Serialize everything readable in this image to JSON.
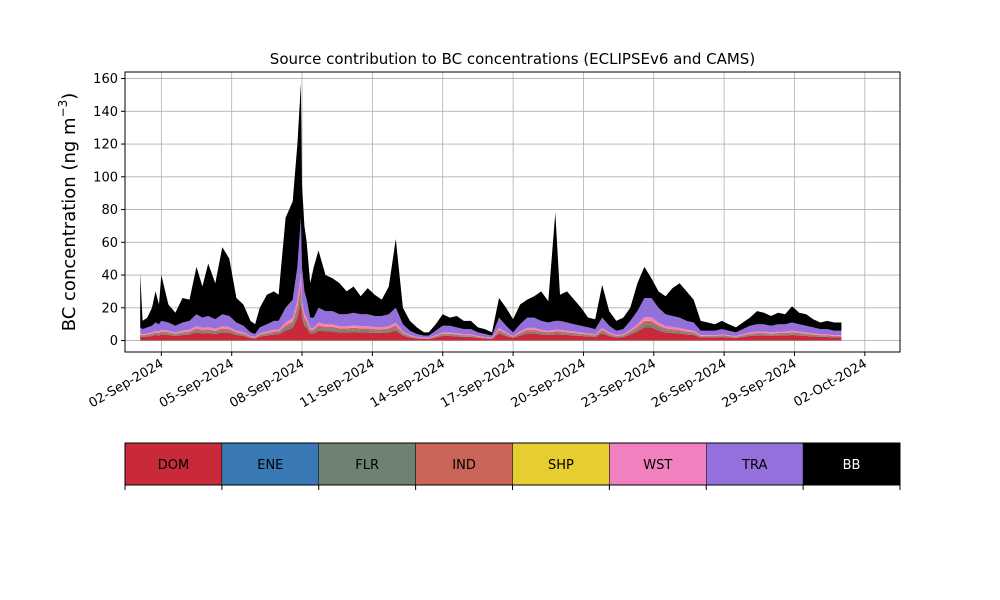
{
  "chart_data": {
    "type": "area",
    "title": "Source contribution to BC concentrations (ECLIPSEv6 and CAMS)",
    "ylabel": "BC concentration (ng m⁻³)",
    "ylabel_main": "BC concentration (ng m",
    "ylabel_sup": "−3",
    "ylabel_close": ")",
    "xlabel": "",
    "ylim": [
      -7,
      164
    ],
    "xlim_days": [
      -1.55,
      31.5
    ],
    "yticks": [
      0,
      20,
      40,
      60,
      80,
      100,
      120,
      140,
      160
    ],
    "xtick_labels": [
      "02-Sep-2024",
      "05-Sep-2024",
      "08-Sep-2024",
      "11-Sep-2024",
      "14-Sep-2024",
      "17-Sep-2024",
      "20-Sep-2024",
      "23-Sep-2024",
      "26-Sep-2024",
      "29-Sep-2024",
      "02-Oct-2024"
    ],
    "xtick_days": [
      0,
      3,
      6,
      9,
      12,
      15,
      18,
      21,
      24,
      27,
      30
    ],
    "grid": true,
    "series_order": [
      "DOM",
      "ENE",
      "FLR",
      "IND",
      "SHP",
      "WST",
      "TRA",
      "BB"
    ],
    "colors": {
      "DOM": "#c82a3a",
      "ENE": "#3878b4",
      "FLR": "#6e8272",
      "IND": "#c86458",
      "SHP": "#e6cd32",
      "WST": "#f081be",
      "TRA": "#9370db",
      "BB": "#000000"
    },
    "x_days": [
      -0.9,
      -0.8,
      -0.6,
      -0.4,
      -0.25,
      -0.1,
      0.0,
      0.3,
      0.6,
      0.9,
      1.2,
      1.5,
      1.75,
      2.0,
      2.3,
      2.6,
      2.9,
      3.2,
      3.5,
      3.8,
      4.0,
      4.2,
      4.5,
      4.8,
      5.0,
      5.3,
      5.6,
      5.8,
      5.95,
      6.0,
      6.1,
      6.2,
      6.35,
      6.5,
      6.7,
      7.0,
      7.3,
      7.6,
      7.9,
      8.2,
      8.5,
      8.8,
      9.1,
      9.4,
      9.7,
      10.0,
      10.3,
      10.6,
      10.9,
      11.2,
      11.4,
      11.7,
      12.0,
      12.3,
      12.6,
      12.9,
      13.2,
      13.5,
      13.8,
      14.1,
      14.4,
      14.7,
      15.0,
      15.3,
      15.6,
      15.9,
      16.2,
      16.5,
      16.8,
      17.0,
      17.3,
      17.6,
      17.9,
      18.2,
      18.5,
      18.8,
      19.1,
      19.4,
      19.7,
      20.0,
      20.3,
      20.6,
      20.9,
      21.2,
      21.5,
      21.8,
      22.1,
      22.4,
      22.7,
      23.0,
      23.3,
      23.6,
      23.9,
      24.2,
      24.5,
      24.8,
      25.1,
      25.4,
      25.7,
      26.0,
      26.3,
      26.6,
      26.9,
      27.2,
      27.5,
      27.8,
      28.1,
      28.4,
      28.7,
      29.0
    ],
    "totals": [
      41,
      12,
      14,
      20,
      30,
      22,
      40,
      22,
      17,
      26,
      25,
      45,
      33,
      47,
      35,
      57,
      50,
      26,
      22,
      12,
      10,
      20,
      28,
      30,
      28,
      75,
      85,
      120,
      157,
      95,
      70,
      60,
      35,
      45,
      55,
      40,
      38,
      35,
      30,
      33,
      27,
      32,
      28,
      25,
      33,
      62,
      20,
      12,
      8,
      5,
      5,
      10,
      16,
      14,
      15,
      12,
      12,
      8,
      7,
      5,
      26,
      20,
      13,
      22,
      25,
      27,
      30,
      24,
      78,
      28,
      30,
      25,
      20,
      14,
      13,
      34,
      18,
      12,
      14,
      20,
      35,
      45,
      38,
      30,
      27,
      32,
      35,
      30,
      25,
      12,
      11,
      10,
      12,
      10,
      8,
      11,
      14,
      18,
      17,
      15,
      17,
      16,
      21,
      17,
      16,
      13,
      11,
      12,
      11,
      11
    ],
    "tra_tops": [
      8,
      7,
      8,
      9,
      11,
      10,
      12,
      11,
      9,
      11,
      12,
      16,
      14,
      15,
      13,
      16,
      15,
      11,
      9,
      5,
      4,
      8,
      10,
      12,
      12,
      20,
      25,
      45,
      75,
      45,
      30,
      25,
      14,
      14,
      20,
      18,
      18,
      16,
      16,
      17,
      16,
      16,
      15,
      15,
      16,
      20,
      10,
      6,
      4,
      3,
      3,
      6,
      9,
      9,
      8,
      7,
      7,
      5,
      4,
      3,
      14,
      9,
      5,
      10,
      14,
      14,
      12,
      11,
      12,
      12,
      11,
      10,
      9,
      8,
      7,
      14,
      9,
      6,
      7,
      12,
      18,
      26,
      26,
      20,
      16,
      15,
      14,
      12,
      11,
      6,
      6,
      6,
      7,
      6,
      5,
      7,
      9,
      10,
      10,
      9,
      10,
      10,
      11,
      10,
      9,
      8,
      7,
      7,
      6,
      6
    ],
    "stack_fractions": [
      0.56,
      0.02,
      0.12,
      0.14,
      0.01,
      0.15
    ]
  },
  "legend": {
    "labels": [
      "DOM",
      "ENE",
      "FLR",
      "IND",
      "SHP",
      "WST",
      "TRA",
      "BB"
    ],
    "text_colors": [
      "#000000",
      "#000000",
      "#000000",
      "#000000",
      "#000000",
      "#000000",
      "#000000",
      "#ffffff"
    ]
  }
}
